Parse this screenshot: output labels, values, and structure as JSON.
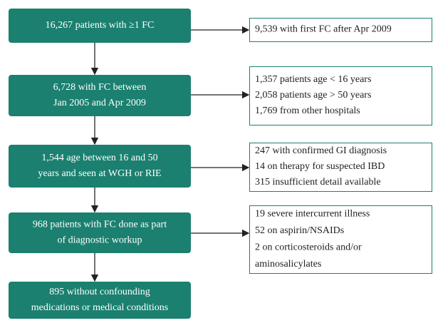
{
  "main_steps": [
    {
      "lines": [
        "16,267 patients with ≥1 FC"
      ]
    },
    {
      "lines": [
        "6,728 with FC between",
        "Jan 2005 and Apr 2009"
      ]
    },
    {
      "lines": [
        "1,544 age between 16 and 50",
        "years and seen at WGH or RIE"
      ]
    },
    {
      "lines": [
        "968 patients with FC done as part",
        "of diagnostic workup"
      ]
    },
    {
      "lines": [
        "895 without confounding",
        "medications or medical conditions"
      ]
    }
  ],
  "exclusions": [
    {
      "lines": [
        "9,539 with first FC after Apr 2009"
      ]
    },
    {
      "lines": [
        "1,357 patients age < 16 years",
        "2,058 patients age > 50 years",
        "1,769 from other hospitals"
      ]
    },
    {
      "lines": [
        "247 with confirmed GI diagnosis",
        "14 on therapy for suspected IBD",
        "315 insufficient detail available"
      ]
    },
    {
      "lines": [
        "19 severe intercurrent illness",
        "52 on aspirin/NSAIDs",
        "2 on corticosteroids and/or",
        "aminosalicylates"
      ]
    }
  ]
}
